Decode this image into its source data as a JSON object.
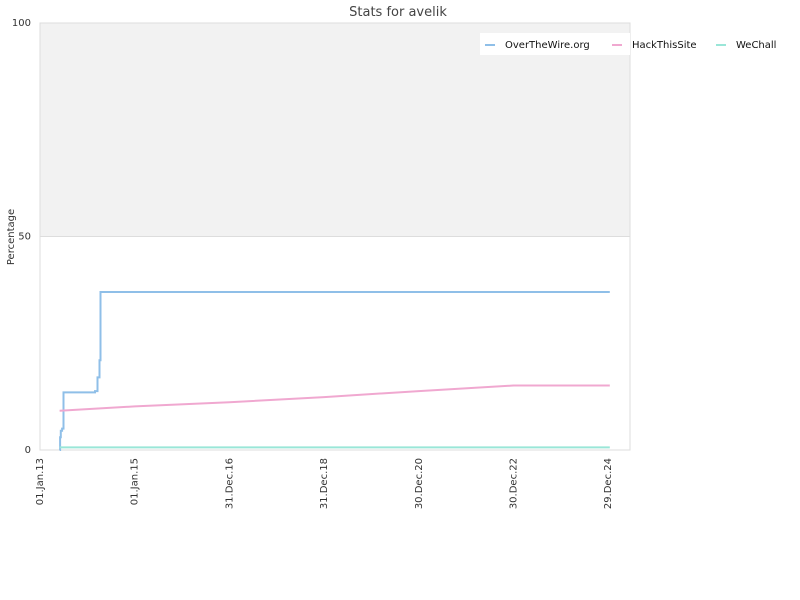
{
  "chart_data": {
    "type": "line",
    "title": "Stats for avelik",
    "xlabel": "",
    "ylabel": "Percentage",
    "ylim": [
      0,
      100
    ],
    "y_ticks": [
      "0",
      "50",
      "100"
    ],
    "x_ticks": [
      "01.Jan.13",
      "01.Jan.15",
      "31.Dec.16",
      "31.Dec.18",
      "30.Dec.20",
      "30.Dec.22",
      "29.Dec.24"
    ],
    "x_tick_dates": [
      "2013-01-01",
      "2015-01-01",
      "2016-12-31",
      "2018-12-31",
      "2020-12-30",
      "2022-12-30",
      "2024-12-29"
    ],
    "xlim": [
      "2013-01-01",
      "2025-06-15"
    ],
    "shaded_band": [
      50,
      100
    ],
    "legend_position": "top-right",
    "series": [
      {
        "name": "OverTheWire.org",
        "color": "#8fbfe8",
        "step": true,
        "points": [
          [
            "2013-06-01",
            0
          ],
          [
            "2013-06-05",
            3
          ],
          [
            "2013-06-10",
            4.5
          ],
          [
            "2013-06-20",
            5
          ],
          [
            "2013-07-01",
            13.5
          ],
          [
            "2013-12-01",
            13.5
          ],
          [
            "2014-03-01",
            13.8
          ],
          [
            "2014-03-20",
            17
          ],
          [
            "2014-04-05",
            21
          ],
          [
            "2014-04-12",
            37
          ],
          [
            "2025-01-10",
            37
          ]
        ]
      },
      {
        "name": "HackThisSite",
        "color": "#f0a8d0",
        "step": false,
        "points": [
          [
            "2013-06-01",
            9.2
          ],
          [
            "2015-01-01",
            10.2
          ],
          [
            "2016-12-31",
            11.2
          ],
          [
            "2018-12-31",
            12.4
          ],
          [
            "2020-12-30",
            13.8
          ],
          [
            "2022-12-30",
            15.1
          ],
          [
            "2025-01-10",
            15.1
          ]
        ]
      },
      {
        "name": "WeChall",
        "color": "#9ae6d8",
        "step": false,
        "points": [
          [
            "2013-06-01",
            0.6
          ],
          [
            "2025-01-10",
            0.6
          ]
        ]
      }
    ]
  }
}
